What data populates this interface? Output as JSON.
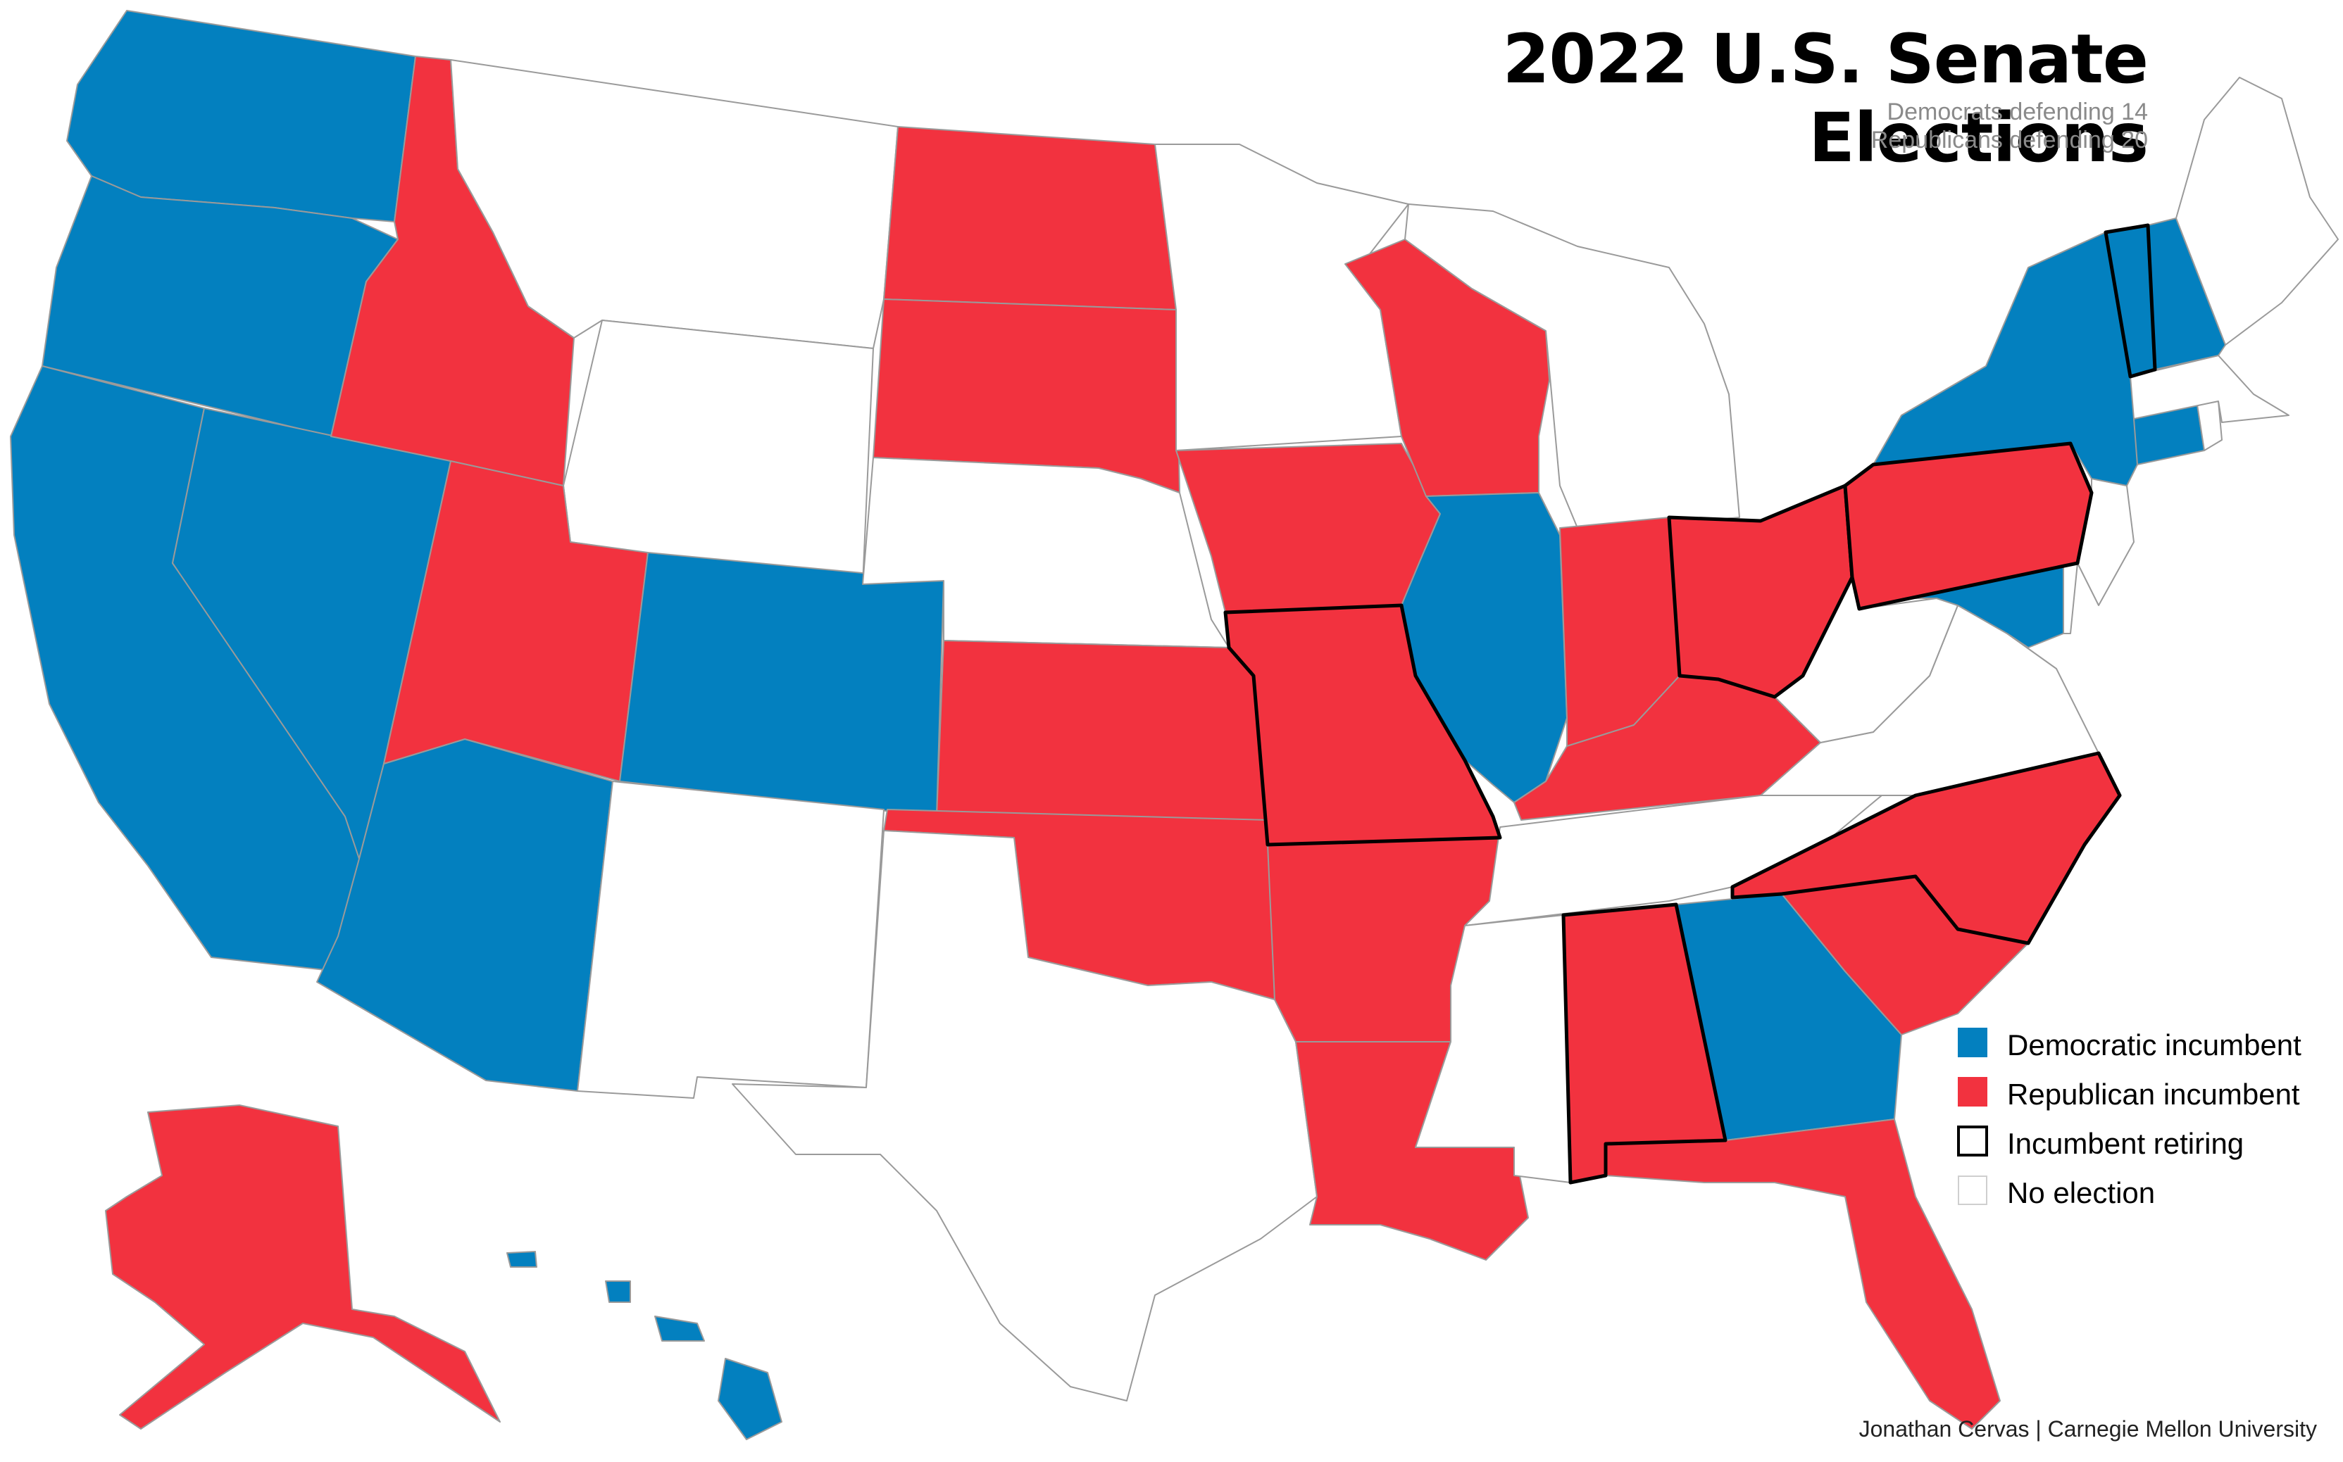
{
  "title": "2022 U.S. Senate Elections",
  "subtitle": {
    "line1": "Democrats defending 14",
    "line2": "Republicans defending 20"
  },
  "colors": {
    "democratic": "#0380bf",
    "republican": "#f2323f",
    "no_election": "#ffffff",
    "retiring_outline": "#000000",
    "state_border": "#9a9a9a"
  },
  "legend": [
    {
      "key": "democratic",
      "label": "Democratic incumbent"
    },
    {
      "key": "republican",
      "label": "Republican incumbent"
    },
    {
      "key": "retiring",
      "label": "Incumbent retiring"
    },
    {
      "key": "none",
      "label": "No election"
    }
  ],
  "credit": "Jonathan Cervas | Carnegie Mellon University",
  "states": [
    {
      "id": "WA",
      "status": "democratic"
    },
    {
      "id": "OR",
      "status": "democratic"
    },
    {
      "id": "CA",
      "status": "democratic"
    },
    {
      "id": "NV",
      "status": "democratic"
    },
    {
      "id": "AZ",
      "status": "democratic"
    },
    {
      "id": "CO",
      "status": "democratic"
    },
    {
      "id": "IL",
      "status": "democratic"
    },
    {
      "id": "GA",
      "status": "democratic"
    },
    {
      "id": "NY",
      "status": "democratic"
    },
    {
      "id": "VT",
      "status": "democratic",
      "retiring": true
    },
    {
      "id": "NH",
      "status": "democratic"
    },
    {
      "id": "CT",
      "status": "democratic"
    },
    {
      "id": "MD",
      "status": "democratic"
    },
    {
      "id": "HI",
      "status": "democratic"
    },
    {
      "id": "ID",
      "status": "republican"
    },
    {
      "id": "UT",
      "status": "republican"
    },
    {
      "id": "ND",
      "status": "republican"
    },
    {
      "id": "SD",
      "status": "republican"
    },
    {
      "id": "KS",
      "status": "republican"
    },
    {
      "id": "OK",
      "status": "republican"
    },
    {
      "id": "IA",
      "status": "republican"
    },
    {
      "id": "MO",
      "status": "republican",
      "retiring": true
    },
    {
      "id": "AR",
      "status": "republican"
    },
    {
      "id": "LA",
      "status": "republican"
    },
    {
      "id": "WI",
      "status": "republican"
    },
    {
      "id": "IN",
      "status": "republican"
    },
    {
      "id": "KY",
      "status": "republican"
    },
    {
      "id": "OH",
      "status": "republican",
      "retiring": true
    },
    {
      "id": "PA",
      "status": "republican",
      "retiring": true
    },
    {
      "id": "NC",
      "status": "republican",
      "retiring": true
    },
    {
      "id": "SC",
      "status": "republican"
    },
    {
      "id": "AL",
      "status": "republican",
      "retiring": true
    },
    {
      "id": "FL",
      "status": "republican"
    },
    {
      "id": "AK",
      "status": "republican"
    },
    {
      "id": "MT",
      "status": "none"
    },
    {
      "id": "WY",
      "status": "none"
    },
    {
      "id": "NE",
      "status": "none"
    },
    {
      "id": "NM",
      "status": "none"
    },
    {
      "id": "TX",
      "status": "none"
    },
    {
      "id": "MN",
      "status": "none"
    },
    {
      "id": "MI",
      "status": "none"
    },
    {
      "id": "MS",
      "status": "none"
    },
    {
      "id": "TN",
      "status": "none"
    },
    {
      "id": "VA",
      "status": "none"
    },
    {
      "id": "WV",
      "status": "none"
    },
    {
      "id": "NJ",
      "status": "none"
    },
    {
      "id": "DE",
      "status": "none"
    },
    {
      "id": "MA",
      "status": "none"
    },
    {
      "id": "RI",
      "status": "none"
    },
    {
      "id": "ME",
      "status": "none"
    }
  ]
}
